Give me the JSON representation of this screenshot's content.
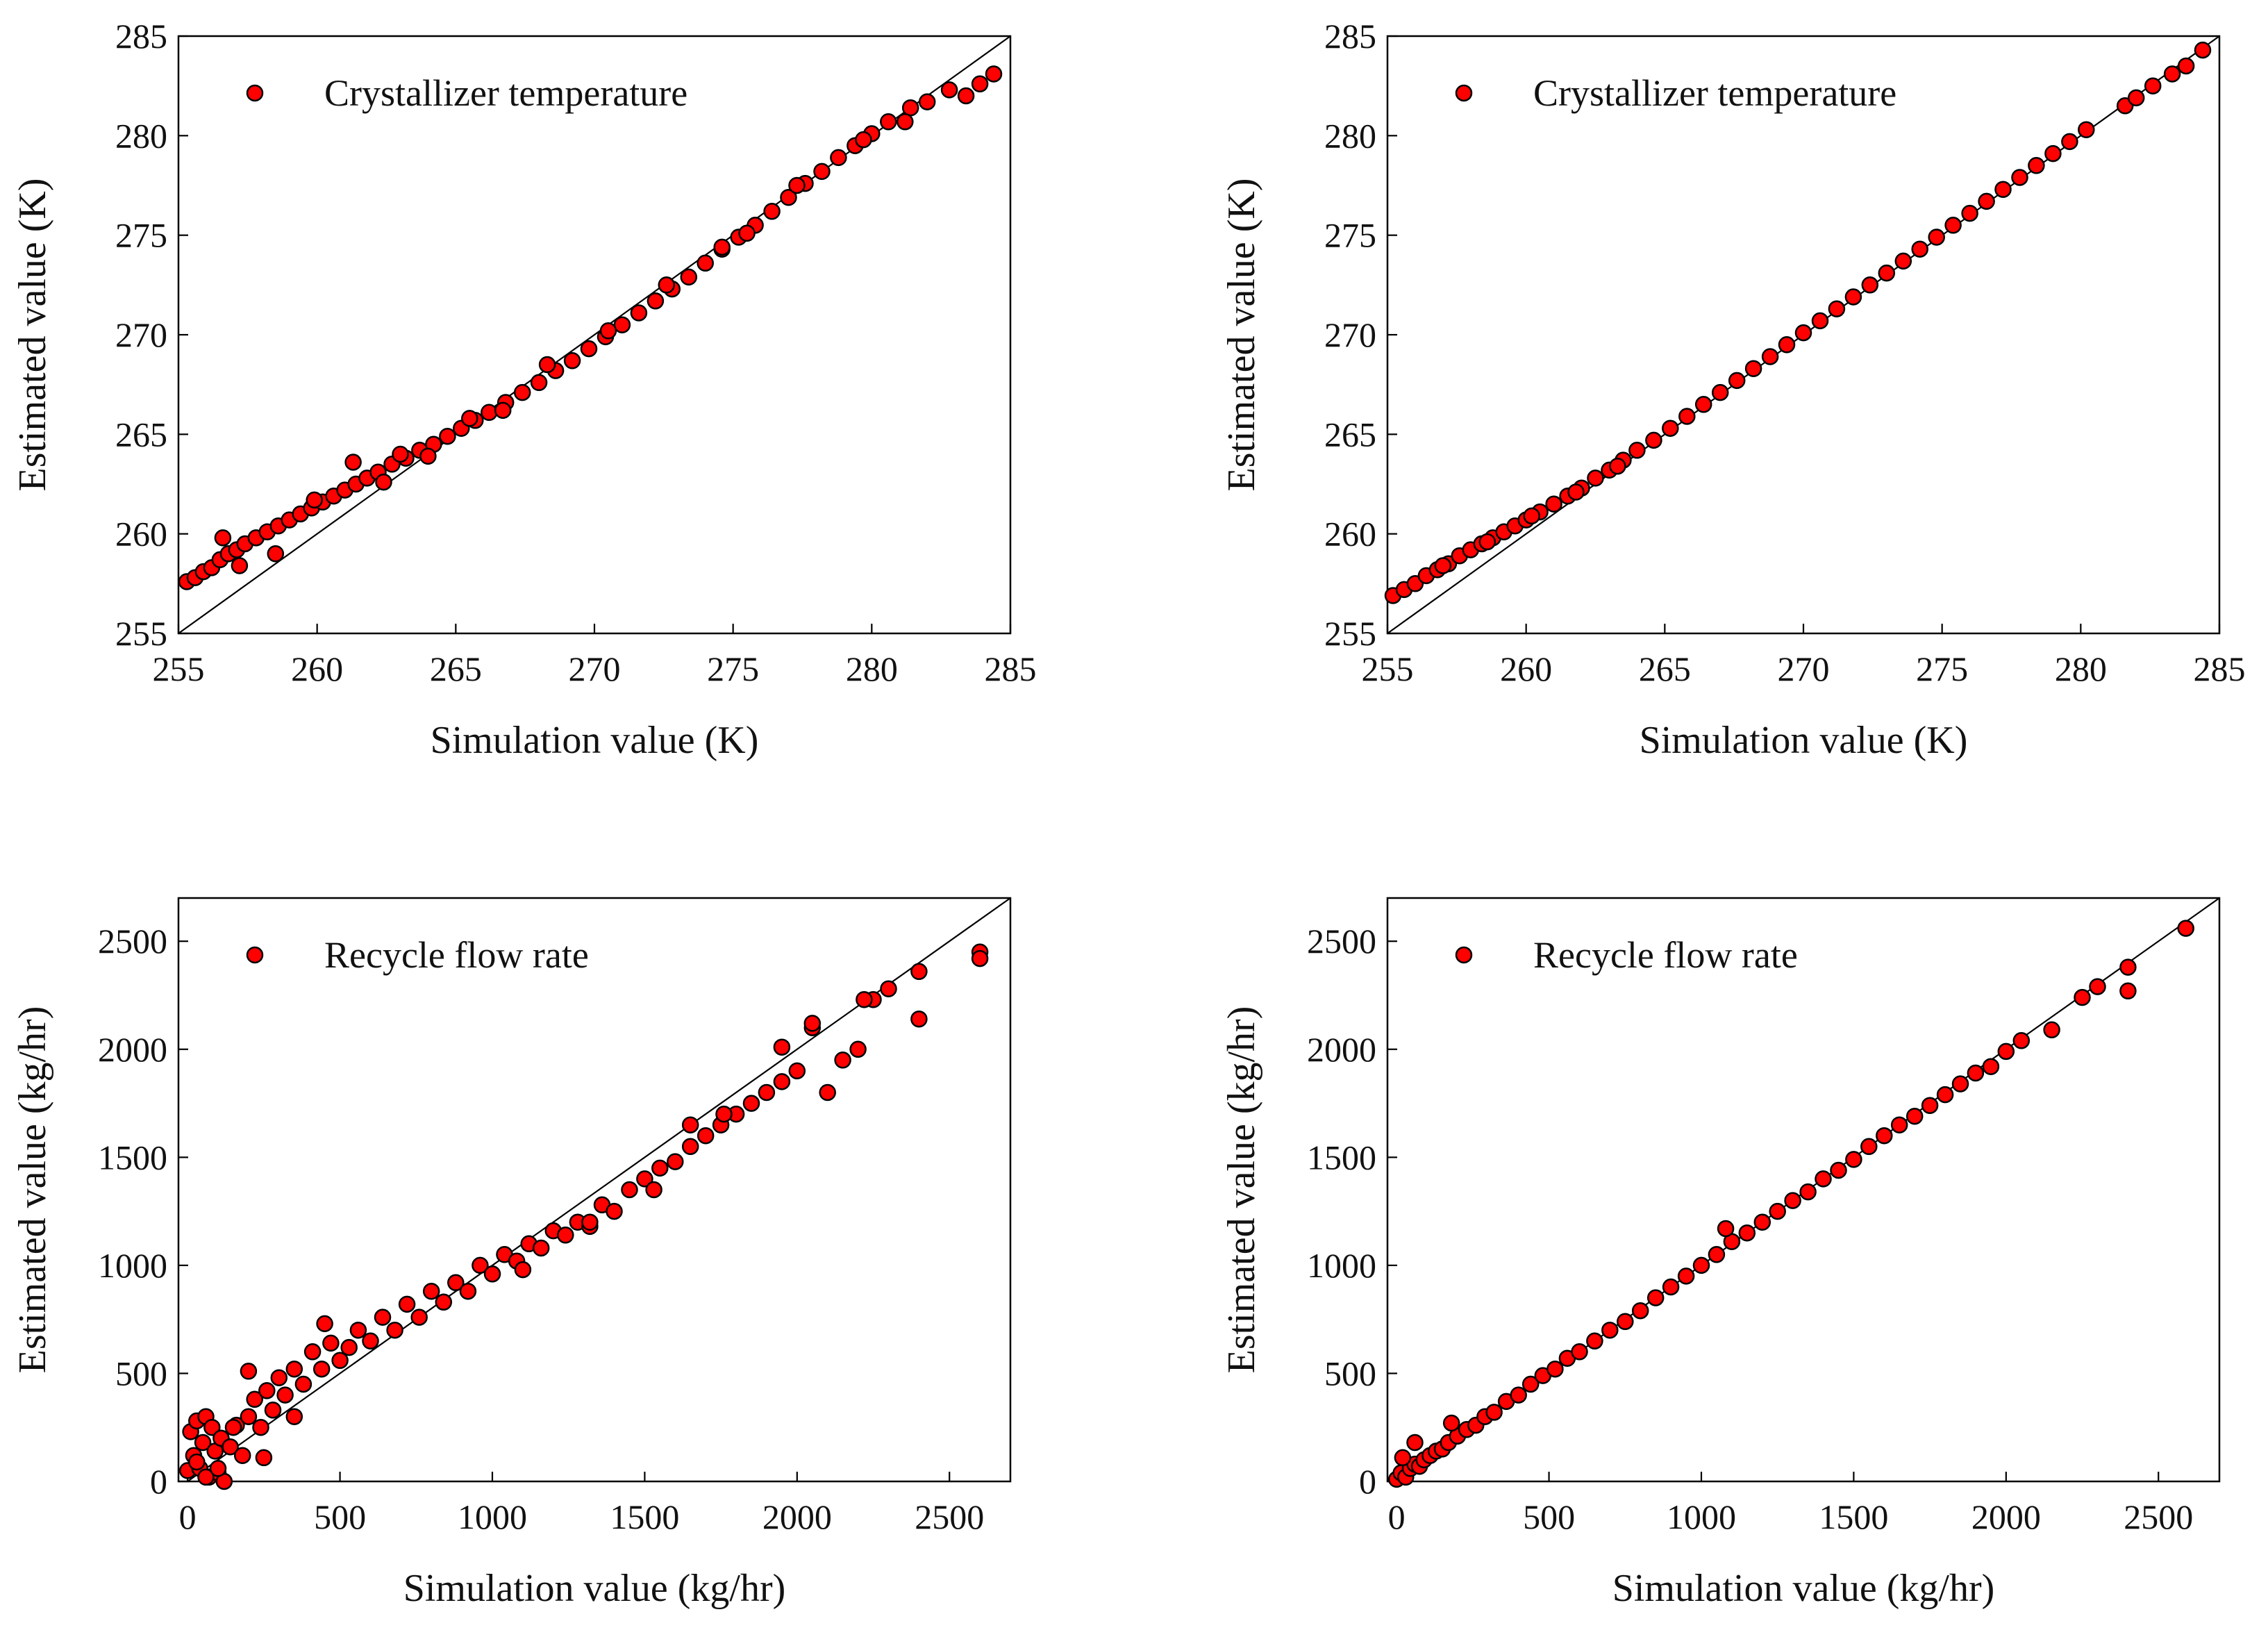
{
  "colors": {
    "marker_fill": "#ff0000",
    "marker_edge": "#000000",
    "axis": "#000000",
    "line": "#000000"
  },
  "chart_data": [
    {
      "type": "scatter",
      "title": "",
      "xlabel": "Simulation value (K)",
      "ylabel": "Estimated value (K)",
      "legend": "Crystallizer temperature",
      "legend_position": "top-left",
      "xlim": [
        255,
        285
      ],
      "ylim": [
        255,
        285
      ],
      "xticks": [
        255,
        260,
        265,
        270,
        275,
        280,
        285
      ],
      "yticks": [
        255,
        260,
        265,
        270,
        275,
        280,
        285
      ],
      "xtick_labels": [
        "255",
        "260",
        "265",
        "270",
        "275",
        "280",
        "285"
      ],
      "ytick_labels": [
        "255",
        "260",
        "265",
        "270",
        "275",
        "280",
        "285"
      ],
      "reference_line": "y = x",
      "points_x": [
        255.3,
        255.6,
        255.9,
        256.2,
        256.5,
        256.8,
        257.1,
        257.4,
        257.8,
        258.2,
        258.6,
        259.0,
        259.4,
        259.8,
        260.2,
        260.6,
        261.0,
        261.4,
        261.8,
        262.2,
        262.7,
        263.2,
        263.7,
        264.2,
        264.7,
        265.2,
        265.7,
        266.2,
        266.8,
        267.4,
        268.0,
        268.6,
        269.2,
        269.8,
        270.4,
        271.0,
        271.6,
        272.2,
        272.8,
        273.4,
        274.0,
        274.6,
        275.2,
        275.8,
        276.4,
        277.0,
        277.6,
        278.2,
        278.8,
        279.4,
        280.0,
        280.6,
        281.4,
        282.0,
        282.8,
        283.4,
        283.9,
        284.4,
        256.6,
        257.2,
        258.5,
        259.9,
        261.3,
        262.4,
        263.0,
        264.0,
        265.5,
        266.7,
        268.3,
        270.5,
        272.6,
        274.6,
        275.5,
        277.3,
        279.7,
        281.2
      ],
      "points_y": [
        257.6,
        257.8,
        258.1,
        258.3,
        258.7,
        259.0,
        259.2,
        259.5,
        259.8,
        260.1,
        260.4,
        260.7,
        261.0,
        261.3,
        261.6,
        261.9,
        262.2,
        262.5,
        262.8,
        263.1,
        263.5,
        263.8,
        264.2,
        264.5,
        264.9,
        265.3,
        265.7,
        266.1,
        266.6,
        267.1,
        267.6,
        268.2,
        268.7,
        269.3,
        269.9,
        270.5,
        271.1,
        271.7,
        272.3,
        272.9,
        273.6,
        274.3,
        274.9,
        275.5,
        276.2,
        276.9,
        277.6,
        278.2,
        278.9,
        279.5,
        280.1,
        280.7,
        281.4,
        281.7,
        282.3,
        282.0,
        282.6,
        283.1,
        259.8,
        258.4,
        259.0,
        261.7,
        263.6,
        262.6,
        264.0,
        263.9,
        265.8,
        266.2,
        268.5,
        270.2,
        272.5,
        274.4,
        275.1,
        277.5,
        279.8,
        280.7
      ]
    },
    {
      "type": "scatter",
      "title": "",
      "xlabel": "Simulation value (K)",
      "ylabel": "Estimated value (K)",
      "legend": "Crystallizer temperature",
      "legend_position": "top-left",
      "xlim": [
        255,
        285
      ],
      "ylim": [
        255,
        285
      ],
      "xticks": [
        255,
        260,
        265,
        270,
        275,
        280,
        285
      ],
      "yticks": [
        255,
        260,
        265,
        270,
        275,
        280,
        285
      ],
      "xtick_labels": [
        "255",
        "260",
        "265",
        "270",
        "275",
        "280",
        "285"
      ],
      "ytick_labels": [
        "255",
        "260",
        "265",
        "270",
        "275",
        "280",
        "285"
      ],
      "reference_line": "y = x",
      "points_x": [
        255.2,
        255.6,
        256.0,
        256.4,
        256.8,
        257.2,
        257.6,
        258.0,
        258.4,
        258.8,
        259.2,
        259.6,
        260.0,
        260.5,
        261.0,
        261.5,
        262.0,
        262.5,
        263.0,
        263.5,
        264.0,
        264.6,
        265.2,
        265.8,
        266.4,
        267.0,
        267.6,
        268.2,
        268.8,
        269.4,
        270.0,
        270.6,
        271.2,
        271.8,
        272.4,
        273.0,
        273.6,
        274.2,
        274.8,
        275.4,
        276.0,
        276.6,
        277.2,
        277.8,
        278.4,
        279.0,
        279.6,
        280.2,
        281.6,
        282.0,
        282.6,
        283.3,
        283.8,
        284.4,
        257.0,
        258.6,
        260.2,
        261.8,
        263.3
      ],
      "points_y": [
        256.9,
        257.2,
        257.5,
        257.9,
        258.2,
        258.5,
        258.9,
        259.2,
        259.5,
        259.8,
        260.1,
        260.4,
        260.7,
        261.1,
        261.5,
        261.9,
        262.3,
        262.8,
        263.2,
        263.7,
        264.2,
        264.7,
        265.3,
        265.9,
        266.5,
        267.1,
        267.7,
        268.3,
        268.9,
        269.5,
        270.1,
        270.7,
        271.3,
        271.9,
        272.5,
        273.1,
        273.7,
        274.3,
        274.9,
        275.5,
        276.1,
        276.7,
        277.3,
        277.9,
        278.5,
        279.1,
        279.7,
        280.3,
        281.5,
        281.9,
        282.5,
        283.1,
        283.5,
        284.3,
        258.4,
        259.6,
        260.9,
        262.1,
        263.4
      ]
    },
    {
      "type": "scatter",
      "title": "",
      "xlabel": "Simulation value (kg/hr)",
      "ylabel": "Estimated value (kg/hr)",
      "legend": "Recycle flow rate",
      "legend_position": "top-left",
      "xlim": [
        -30,
        2700
      ],
      "ylim": [
        0,
        2700
      ],
      "xticks": [
        0,
        500,
        1000,
        1500,
        2000,
        2500
      ],
      "yticks": [
        0,
        500,
        1000,
        1500,
        2000,
        2500
      ],
      "xtick_labels": [
        "0",
        "500",
        "1000",
        "1500",
        "2000",
        "2500"
      ],
      "ytick_labels": [
        "0",
        "500",
        "1000",
        "1500",
        "2000",
        "2500"
      ],
      "reference_line": "y = x",
      "points_x": [
        0,
        10,
        20,
        30,
        40,
        50,
        60,
        70,
        80,
        90,
        100,
        110,
        120,
        140,
        160,
        180,
        200,
        220,
        240,
        260,
        280,
        300,
        320,
        350,
        380,
        410,
        440,
        470,
        500,
        530,
        560,
        600,
        640,
        680,
        720,
        760,
        800,
        840,
        880,
        920,
        960,
        1000,
        1040,
        1080,
        1120,
        1160,
        1200,
        1240,
        1280,
        1320,
        1360,
        1400,
        1450,
        1500,
        1550,
        1600,
        1650,
        1700,
        1750,
        1800,
        1850,
        1900,
        1950,
        2000,
        2050,
        2100,
        2150,
        2200,
        2250,
        2300,
        2400,
        2600,
        2600,
        2400,
        2050,
        1950,
        2220,
        1650,
        1320,
        450,
        200,
        30,
        60,
        100,
        150,
        250,
        350,
        1100,
        1530,
        1760
      ],
      "points_y": [
        50,
        230,
        120,
        280,
        60,
        180,
        300,
        20,
        250,
        140,
        40,
        200,
        0,
        160,
        260,
        120,
        300,
        380,
        250,
        420,
        330,
        480,
        400,
        520,
        450,
        600,
        520,
        640,
        560,
        620,
        700,
        650,
        760,
        700,
        820,
        760,
        880,
        830,
        920,
        880,
        1000,
        960,
        1050,
        1020,
        1100,
        1080,
        1160,
        1140,
        1200,
        1180,
        1280,
        1250,
        1350,
        1400,
        1450,
        1480,
        1550,
        1600,
        1650,
        1700,
        1750,
        1800,
        1850,
        1900,
        2100,
        1800,
        1950,
        2000,
        2230,
        2280,
        2360,
        2450,
        2420,
        2140,
        2120,
        2010,
        2230,
        1650,
        1200,
        730,
        510,
        90,
        20,
        60,
        250,
        110,
        300,
        980,
        1350,
        1700
      ]
    },
    {
      "type": "scatter",
      "title": "",
      "xlabel": "Simulation value (kg/hr)",
      "ylabel": "Estimated value (kg/hr)",
      "legend": "Recycle flow rate",
      "legend_position": "top-left",
      "xlim": [
        -30,
        2700
      ],
      "ylim": [
        0,
        2700
      ],
      "xticks": [
        0,
        500,
        1000,
        1500,
        2000,
        2500
      ],
      "yticks": [
        0,
        500,
        1000,
        1500,
        2000,
        2500
      ],
      "xtick_labels": [
        "0",
        "500",
        "1000",
        "1500",
        "2000",
        "2500"
      ],
      "ytick_labels": [
        "0",
        "500",
        "1000",
        "1500",
        "2000",
        "2500"
      ],
      "reference_line": "y = x",
      "points_x": [
        0,
        15,
        30,
        45,
        60,
        75,
        90,
        110,
        130,
        150,
        170,
        200,
        230,
        260,
        290,
        320,
        360,
        400,
        440,
        480,
        520,
        560,
        600,
        650,
        700,
        750,
        800,
        850,
        900,
        950,
        1000,
        1050,
        1100,
        1150,
        1200,
        1250,
        1300,
        1350,
        1400,
        1450,
        1500,
        1550,
        1600,
        1650,
        1700,
        1750,
        1800,
        1850,
        1900,
        1950,
        2000,
        2050,
        2150,
        2250,
        2300,
        2400,
        2400,
        2590,
        20,
        60,
        180,
        1080
      ],
      "points_y": [
        10,
        40,
        20,
        60,
        80,
        70,
        100,
        120,
        140,
        150,
        180,
        210,
        240,
        260,
        300,
        320,
        370,
        400,
        450,
        490,
        520,
        570,
        600,
        650,
        700,
        740,
        790,
        850,
        900,
        950,
        1000,
        1050,
        1110,
        1150,
        1200,
        1250,
        1300,
        1340,
        1400,
        1440,
        1490,
        1550,
        1600,
        1650,
        1690,
        1740,
        1790,
        1840,
        1890,
        1920,
        1990,
        2040,
        2090,
        2240,
        2290,
        2270,
        2380,
        2560,
        110,
        180,
        270,
        1170
      ]
    }
  ]
}
